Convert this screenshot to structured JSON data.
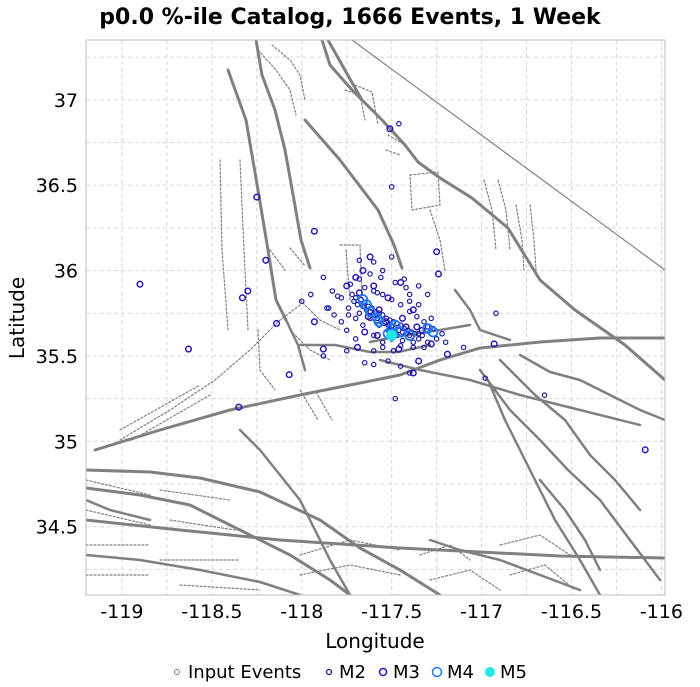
{
  "chart_data": {
    "type": "scatter",
    "title": "p0.0 %-ile Catalog, 1666 Events, 1 Week",
    "xlabel": "Longitude",
    "ylabel": "Latitude",
    "xlim": [
      -119.2,
      -115.98
    ],
    "ylim": [
      34.1,
      37.35
    ],
    "x_ticks": [
      -119,
      -118.5,
      -118,
      -117.5,
      -117,
      -116.5,
      -116
    ],
    "x_tick_labels": [
      "-119",
      "-118.5",
      "-118",
      "-117.5",
      "-117",
      "-116.5",
      "-116"
    ],
    "y_ticks": [
      34.5,
      35,
      35.5,
      36,
      36.5,
      37
    ],
    "y_tick_labels": [
      "34.5",
      "35",
      "35.5",
      "36",
      "36.5",
      "37"
    ],
    "grid": true,
    "legend_position": "bottom",
    "legend": [
      "Input Events",
      "M2",
      "M3",
      "M4",
      "M5"
    ],
    "colors": {
      "input": "#808080",
      "m2": "#1e1e9e",
      "m3": "#2a15b8",
      "m4": "#1e78ff",
      "m5": "#22e6e6",
      "fault": "#808080",
      "grid": "#d8d8d8"
    },
    "series": [
      {
        "name": "M2",
        "points": [
          [
            -117.71,
            35.82
          ],
          [
            -117.69,
            35.8
          ],
          [
            -117.66,
            35.79
          ],
          [
            -117.64,
            35.77
          ],
          [
            -117.62,
            35.76
          ],
          [
            -117.6,
            35.74
          ],
          [
            -117.58,
            35.72
          ],
          [
            -117.56,
            35.71
          ],
          [
            -117.54,
            35.69
          ],
          [
            -117.52,
            35.68
          ],
          [
            -117.5,
            35.67
          ],
          [
            -117.48,
            35.66
          ],
          [
            -117.46,
            35.65
          ],
          [
            -117.44,
            35.64
          ],
          [
            -117.42,
            35.63
          ],
          [
            -117.4,
            35.62
          ],
          [
            -117.72,
            35.86
          ],
          [
            -117.7,
            35.84
          ],
          [
            -117.67,
            35.83
          ],
          [
            -117.65,
            35.81
          ],
          [
            -117.63,
            35.79
          ],
          [
            -117.61,
            35.78
          ],
          [
            -117.59,
            35.76
          ],
          [
            -117.57,
            35.75
          ],
          [
            -117.55,
            35.74
          ],
          [
            -117.53,
            35.72
          ],
          [
            -117.51,
            35.71
          ],
          [
            -117.49,
            35.7
          ],
          [
            -117.47,
            35.69
          ],
          [
            -117.45,
            35.68
          ],
          [
            -117.43,
            35.66
          ],
          [
            -117.41,
            35.65
          ],
          [
            -117.39,
            35.64
          ],
          [
            -117.37,
            35.63
          ],
          [
            -117.74,
            35.78
          ],
          [
            -117.68,
            35.75
          ],
          [
            -117.62,
            35.72
          ],
          [
            -117.57,
            35.68
          ],
          [
            -117.52,
            35.65
          ],
          [
            -117.47,
            35.62
          ],
          [
            -117.35,
            35.6
          ],
          [
            -117.33,
            35.62
          ],
          [
            -117.3,
            35.67
          ],
          [
            -117.32,
            35.7
          ],
          [
            -117.36,
            35.73
          ],
          [
            -117.4,
            35.76
          ],
          [
            -117.45,
            35.8
          ],
          [
            -117.5,
            35.83
          ],
          [
            -117.55,
            35.86
          ],
          [
            -117.6,
            35.88
          ],
          [
            -117.65,
            35.9
          ],
          [
            -117.8,
            35.85
          ],
          [
            -117.83,
            35.88
          ],
          [
            -117.85,
            35.78
          ],
          [
            -117.78,
            35.7
          ],
          [
            -117.75,
            35.65
          ],
          [
            -117.7,
            35.6
          ],
          [
            -117.55,
            35.58
          ],
          [
            -117.45,
            35.56
          ],
          [
            -117.38,
            35.55
          ],
          [
            -117.3,
            35.58
          ],
          [
            -117.25,
            35.6
          ],
          [
            -117.27,
            35.66
          ],
          [
            -117.28,
            35.72
          ],
          [
            -117.42,
            35.9
          ],
          [
            -117.48,
            35.93
          ],
          [
            -117.56,
            35.96
          ],
          [
            -117.62,
            35.98
          ],
          [
            -117.68,
            35.95
          ],
          [
            -117.73,
            35.92
          ],
          [
            -117.6,
            35.62
          ],
          [
            -117.5,
            35.6
          ],
          [
            -117.44,
            35.59
          ],
          [
            -117.38,
            35.58
          ],
          [
            -117.66,
            35.68
          ],
          [
            -117.7,
            35.72
          ],
          [
            -117.74,
            35.74
          ],
          [
            -117.49,
            35.53
          ],
          [
            -117.52,
            35.47
          ],
          [
            -117.45,
            35.44
          ],
          [
            -117.6,
            35.45
          ],
          [
            -117.65,
            35.46
          ],
          [
            -117.4,
            35.4
          ],
          [
            -117.1,
            35.55
          ],
          [
            -116.98,
            35.37
          ],
          [
            -116.92,
            35.75
          ],
          [
            -117.2,
            35.58
          ],
          [
            -117.22,
            35.63
          ],
          [
            -118.0,
            35.82
          ],
          [
            -117.78,
            35.84
          ],
          [
            -117.95,
            35.86
          ],
          [
            -117.88,
            35.96
          ],
          [
            -117.88,
            35.5
          ],
          [
            -117.75,
            35.53
          ],
          [
            -117.43,
            35.95
          ],
          [
            -117.4,
            35.82
          ],
          [
            -117.35,
            35.8
          ],
          [
            -117.58,
            35.87
          ],
          [
            -117.35,
            35.91
          ],
          [
            -117.5,
            36.08
          ],
          [
            -117.55,
            36.0
          ],
          [
            -117.5,
            36.49
          ],
          [
            -117.46,
            36.86
          ],
          [
            -117.6,
            36.05
          ],
          [
            -117.48,
            35.25
          ],
          [
            -116.65,
            35.27
          ],
          [
            -117.35,
            35.63
          ],
          [
            -117.32,
            35.55
          ],
          [
            -117.86,
            35.78
          ],
          [
            -117.82,
            35.74
          ],
          [
            -117.6,
            35.53
          ],
          [
            -117.55,
            35.55
          ],
          [
            -117.4,
            35.86
          ],
          [
            -117.3,
            35.86
          ],
          [
            -117.68,
            36.06
          ]
        ]
      },
      {
        "name": "M3",
        "points": [
          [
            -118.9,
            35.92
          ],
          [
            -118.63,
            35.54
          ],
          [
            -118.25,
            36.43
          ],
          [
            -118.3,
            35.88
          ],
          [
            -118.33,
            35.84
          ],
          [
            -118.14,
            35.69
          ],
          [
            -118.07,
            35.39
          ],
          [
            -118.35,
            35.2
          ],
          [
            -117.93,
            36.23
          ],
          [
            -117.88,
            35.54
          ],
          [
            -117.93,
            35.7
          ],
          [
            -117.62,
            36.08
          ],
          [
            -117.51,
            36.83
          ],
          [
            -117.25,
            36.11
          ],
          [
            -117.24,
            35.98
          ],
          [
            -117.28,
            35.57
          ],
          [
            -117.46,
            35.54
          ],
          [
            -117.38,
            35.4
          ],
          [
            -117.19,
            35.51
          ],
          [
            -117.65,
            35.64
          ],
          [
            -117.5,
            35.65
          ],
          [
            -117.42,
            35.67
          ],
          [
            -116.93,
            35.57
          ],
          [
            -117.75,
            35.91
          ],
          [
            -117.68,
            35.87
          ],
          [
            -117.45,
            35.93
          ],
          [
            -117.52,
            35.84
          ],
          [
            -117.57,
            35.77
          ],
          [
            -117.63,
            35.73
          ],
          [
            -117.53,
            35.7
          ],
          [
            -117.44,
            35.72
          ],
          [
            -117.38,
            35.77
          ],
          [
            -117.6,
            35.91
          ],
          [
            -117.7,
            35.96
          ],
          [
            -117.66,
            36.0
          ],
          [
            -117.36,
            35.67
          ],
          [
            -117.33,
            35.65
          ],
          [
            -118.2,
            36.06
          ],
          [
            -117.35,
            35.47
          ],
          [
            -117.69,
            35.55
          ],
          [
            -117.58,
            35.62
          ],
          [
            -116.09,
            34.95
          ]
        ]
      },
      {
        "name": "M4",
        "points": [
          [
            -117.58,
            35.72
          ],
          [
            -117.5,
            35.66
          ],
          [
            -117.45,
            35.64
          ],
          [
            -117.62,
            35.76
          ],
          [
            -117.64,
            35.8
          ],
          [
            -117.57,
            35.7
          ],
          [
            -117.48,
            35.68
          ],
          [
            -117.4,
            35.62
          ],
          [
            -117.52,
            35.63
          ],
          [
            -117.66,
            35.83
          ],
          [
            -117.3,
            35.66
          ],
          [
            -117.27,
            35.64
          ]
        ]
      },
      {
        "name": "M5",
        "points": [
          [
            -117.5,
            35.62
          ]
        ]
      }
    ]
  }
}
